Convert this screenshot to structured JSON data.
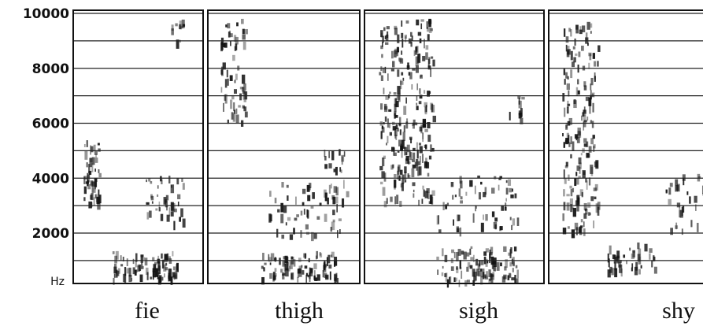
{
  "chart_data": {
    "type": "spectrogram",
    "yticks": [
      10000,
      8000,
      6000,
      4000,
      2000
    ],
    "unit": "Hz",
    "panels": [
      "fie",
      "thigh",
      "sigh",
      "shy"
    ]
  }
}
